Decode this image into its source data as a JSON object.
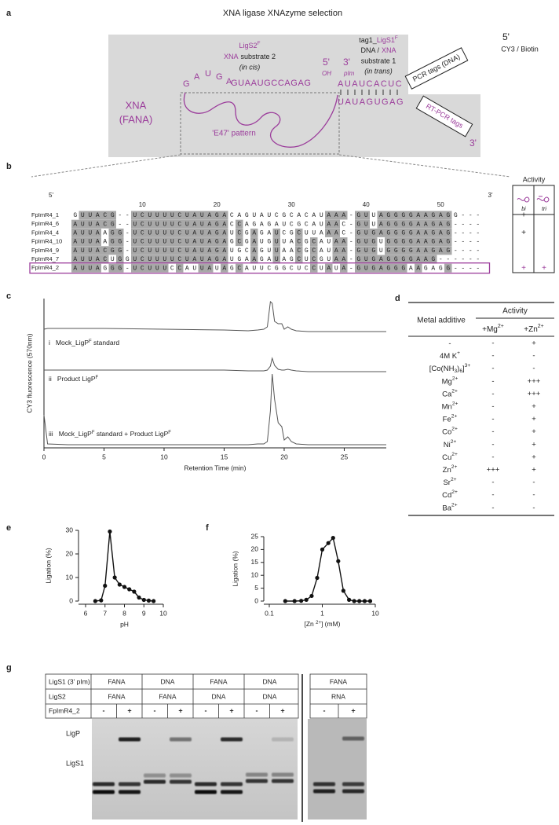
{
  "title": "XNA ligase XNAzyme selection",
  "panel_labels": [
    "a",
    "b",
    "c",
    "d",
    "e",
    "f",
    "g"
  ],
  "panel_a": {
    "five_prime_top": "5'",
    "cy3": "CY3 / Biotin",
    "xna": "XNA",
    "fana": "(FANA)",
    "ligs2": [
      {
        "text": "LigS2"
      },
      {
        "sup": "F"
      }
    ],
    "substrate2": [
      "XNA",
      "substrate 2"
    ],
    "in_cis": "(in cis)",
    "oh_end": "5'",
    "oh": "OH",
    "pim_end": "3'",
    "pim": "pIm",
    "ligs1": [
      {
        "text": "tag1_"
      },
      {
        "text": "LigS1"
      },
      {
        "sup": "F"
      }
    ],
    "substrate1_kind": [
      "DNA /",
      "XNA"
    ],
    "substrate1": "substrate 1",
    "in_trans": "(in trans)",
    "loop_letters": [
      "G",
      "A",
      "U",
      "G",
      "A"
    ],
    "strand2": "GUAAUGCCAGAG",
    "strand1": "AUAUCACUC",
    "template": "UAUAGUGAG",
    "pcr_tags": "PCR tags (DNA)",
    "rt_pcr_tags": "RT-PCR tags",
    "three_prime_bottom": "3'",
    "pattern": "'E47' pattern"
  },
  "panel_b": {
    "five_prime": "5'",
    "three_prime": "3'",
    "positions": [
      10,
      20,
      30,
      40,
      50
    ],
    "activity_title": "Activity",
    "activity_columns": [
      "bi",
      "tri"
    ],
    "rows": [
      {
        "name": "FpImR4_1",
        "sequence": "GUUACG--UCUUUUCUAUAGACAGUAUCGCACAUAAA-GUUAGGGGAAGAGG---",
        "activity": [
          "+",
          null
        ]
      },
      {
        "name": "FpImR4_6",
        "sequence": "AUUACG--UCUUUUCUAUAGACCAGAGAUCGCAUAAC-GUUAGGGGAAGAG----",
        "activity": [
          null,
          null
        ]
      },
      {
        "name": "FpImR4_4",
        "sequence": "AUUAAGG-UCUUUUCUAUAGAUCGAGAUCGCUUAAAC-GUGAGGGGAAGAG----",
        "activity": [
          "+",
          null
        ]
      },
      {
        "name": "FpImR4_10",
        "sequence": "AUUAAGG-UCUUUUCUAUAGAGCGAUGUUACGCAUAA-GUGUGGGGAAGAG----",
        "activity": [
          null,
          null
        ]
      },
      {
        "name": "FpImR4_9",
        "sequence": "AUUACGG-UCUUUUCUAUAGAUGCAGUUAACGCAUAA-GUGUGGGGAAGAG----",
        "activity": [
          null,
          null
        ]
      },
      {
        "name": "FpImR4_7",
        "sequence": "AUUACUGGUCUUUUCUAUAGAUGAAGAUAGCUCGUAA-GUGAGGGGAAG------",
        "activity": [
          null,
          null
        ]
      },
      {
        "name": "FpImR4_2",
        "sequence": "AUUAGGG-UCUUUCCAUUAUAGCAUUCGGCUCCUAUA-GUGAGGGAAGAGG----",
        "activity": [
          "+",
          "+"
        ]
      }
    ]
  },
  "chart_data": [
    {
      "type": "line",
      "xlabel": "Retention Time (min)",
      "ylabel": "CY3 fluorescence (570nm)",
      "xlim": [
        0,
        28.5
      ],
      "xticks": [
        0,
        5,
        10,
        15,
        20,
        25
      ],
      "x": [
        0,
        0.3,
        2,
        5,
        10,
        15,
        17,
        17.8,
        18.3,
        18.6,
        18.85,
        19.0,
        19.2,
        19.5,
        19.8,
        20.0,
        20.3,
        20.6,
        21,
        22,
        25,
        28.5
      ],
      "series": [
        {
          "label": [
            {
              "text": "i   Mock_LigP"
            },
            {
              "sup": "F"
            },
            {
              "text": " standard"
            }
          ],
          "color": "#555555",
          "values": [
            5,
            6,
            6,
            6,
            5,
            4,
            3,
            4,
            5,
            8,
            40,
            38,
            15,
            12,
            12,
            5,
            8,
            5,
            3,
            2,
            2,
            2
          ]
        },
        {
          "label": [
            {
              "text": "ii   Product LigP"
            },
            {
              "sup": "F"
            }
          ],
          "color": "#555555",
          "values": [
            3,
            3,
            3,
            3,
            3,
            3,
            2,
            2,
            2,
            3,
            8,
            18,
            9,
            4,
            3,
            3,
            4,
            3,
            2,
            1,
            1,
            1
          ]
        },
        {
          "label": [
            {
              "text": "iii   Mock_LigP"
            },
            {
              "sup": "F"
            },
            {
              "text": " standard + Product LigP"
            },
            {
              "sup": "F"
            }
          ],
          "color": "#555555",
          "values": [
            40,
            3,
            2,
            2,
            2,
            2,
            2,
            3,
            3,
            6,
            45,
            92,
            60,
            30,
            25,
            8,
            12,
            6,
            3,
            2,
            2,
            2
          ]
        }
      ]
    },
    {
      "type": "line",
      "xlabel": "pH",
      "ylabel": "Ligation (%)",
      "color": "#111111",
      "markers": true,
      "xlim": [
        6,
        10
      ],
      "xticks": [
        6,
        7,
        8,
        9,
        10
      ],
      "ylim": [
        0,
        30
      ],
      "yticks": [
        0,
        10,
        20,
        30
      ],
      "x": [
        6.5,
        6.8,
        7.0,
        7.25,
        7.5,
        7.75,
        8.0,
        8.25,
        8.5,
        8.75,
        9.0,
        9.25,
        9.5
      ],
      "values": [
        0,
        0.3,
        6.5,
        29.5,
        10,
        7,
        6,
        5,
        4,
        1.5,
        0.5,
        0.2,
        0
      ]
    },
    {
      "type": "line",
      "xlabel": [
        {
          "text": "[Zn "
        },
        {
          "sup": "2+"
        },
        {
          "text": "] (mM)"
        }
      ],
      "ylabel": "Ligation (%)",
      "color": "#111111",
      "markers": true,
      "xscale": "log",
      "xlim": [
        0.1,
        10
      ],
      "xticks": [
        0.1,
        1,
        10
      ],
      "ylim": [
        0,
        25
      ],
      "yticks": [
        0,
        5,
        10,
        15,
        20,
        25
      ],
      "x": [
        0.2,
        0.3,
        0.4,
        0.5,
        0.63,
        0.8,
        1.0,
        1.3,
        1.6,
        2.0,
        2.5,
        3.2,
        4.0,
        5.0,
        6.3,
        8.0
      ],
      "values": [
        0,
        0,
        0.1,
        0.5,
        2,
        9,
        20,
        22.5,
        24.5,
        15.5,
        4,
        0.5,
        0,
        0,
        0,
        0
      ]
    }
  ],
  "panel_d": {
    "group": "Activity",
    "metal_header": "Metal additive",
    "mg_header": [
      {
        "text": "+Mg"
      },
      {
        "sup": "2+"
      }
    ],
    "zn_header": [
      {
        "text": "+Zn"
      },
      {
        "sup": "2+"
      }
    ],
    "rows": [
      {
        "label": [
          {
            "text": "-"
          }
        ],
        "mg": "-",
        "zn": "+"
      },
      {
        "label": [
          {
            "text": "4M K"
          },
          {
            "sup": "+"
          }
        ],
        "mg": "-",
        "zn": "-"
      },
      {
        "label": [
          {
            "text": "[Co(NH"
          },
          {
            "sub": "3"
          },
          {
            "text": ")"
          },
          {
            "sub": "6"
          },
          {
            "text": "]"
          },
          {
            "sup": "3+"
          }
        ],
        "mg": "-",
        "zn": "-"
      },
      {
        "label": [
          {
            "text": "Mg"
          },
          {
            "sup": "2+"
          }
        ],
        "mg": "-",
        "zn": "+++"
      },
      {
        "label": [
          {
            "text": "Ca"
          },
          {
            "sup": "2+"
          }
        ],
        "mg": "-",
        "zn": "+++"
      },
      {
        "label": [
          {
            "text": "Mn"
          },
          {
            "sup": "2+"
          }
        ],
        "mg": "-",
        "zn": "+"
      },
      {
        "label": [
          {
            "text": "Fe"
          },
          {
            "sup": "2+"
          }
        ],
        "mg": "-",
        "zn": "+"
      },
      {
        "label": [
          {
            "text": "Co"
          },
          {
            "sup": "2+"
          }
        ],
        "mg": "-",
        "zn": "+"
      },
      {
        "label": [
          {
            "text": "Ni"
          },
          {
            "sup": "2+"
          }
        ],
        "mg": "-",
        "zn": "+"
      },
      {
        "label": [
          {
            "text": "Cu"
          },
          {
            "sup": "2+"
          }
        ],
        "mg": "-",
        "zn": "+"
      },
      {
        "label": [
          {
            "text": "Zn"
          },
          {
            "sup": "2+"
          }
        ],
        "mg": "+++",
        "zn": "+"
      },
      {
        "label": [
          {
            "text": "Sr"
          },
          {
            "sup": "2+"
          }
        ],
        "mg": "-",
        "zn": "-"
      },
      {
        "label": [
          {
            "text": "Cd"
          },
          {
            "sup": "2+"
          }
        ],
        "mg": "-",
        "zn": "-"
      },
      {
        "label": [
          {
            "text": "Ba"
          },
          {
            "sup": "2+"
          }
        ],
        "mg": "-",
        "zn": "-"
      }
    ]
  },
  "panel_g": {
    "rows": [
      {
        "label": "LigS1 (3' pIm)",
        "groups": [
          "FANA",
          "DNA",
          "FANA",
          "DNA"
        ],
        "extra": [
          "FANA"
        ]
      },
      {
        "label": "LigS2",
        "groups": [
          "FANA",
          "FANA",
          "DNA",
          "DNA"
        ],
        "extra": [
          "RNA"
        ]
      },
      {
        "label": "FpImR4_2",
        "lanes": [
          "-",
          "+",
          "-",
          "+",
          "-",
          "+",
          "-",
          "+"
        ],
        "extra_lanes": [
          "-",
          "+"
        ]
      }
    ],
    "ligp": "LigP",
    "ligs1": "LigS1"
  }
}
